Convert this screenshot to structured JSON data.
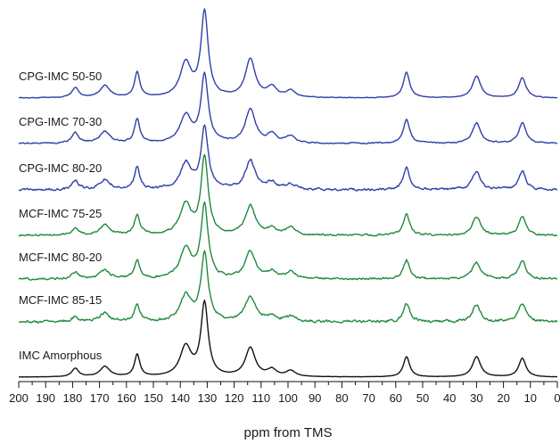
{
  "chart_data": {
    "type": "line",
    "title": "",
    "xlabel": "ppm from TMS",
    "ylabel": "",
    "xlim": [
      200,
      0
    ],
    "x_reversed": true,
    "xticks": [
      "200",
      "190",
      "180",
      "170",
      "160",
      "150",
      "140",
      "130",
      "120",
      "110",
      "100",
      "90",
      "80",
      "70",
      "60",
      "50",
      "40",
      "30",
      "20",
      "10",
      "0"
    ],
    "grid": false,
    "legend": "none",
    "series": [
      {
        "name": "CPG-IMC 50-50",
        "color": "#2f3fa6",
        "noise": 0.3,
        "peaks": [
          [
            179,
            0.12,
            1.5
          ],
          [
            168,
            0.14,
            2.2
          ],
          [
            156,
            0.3,
            1.2
          ],
          [
            138,
            0.4,
            2.5
          ],
          [
            131,
            1.0,
            1.6
          ],
          [
            114,
            0.45,
            2.2
          ],
          [
            106,
            0.12,
            2
          ],
          [
            99,
            0.08,
            2
          ],
          [
            56,
            0.3,
            1.4
          ],
          [
            30,
            0.26,
            1.8
          ],
          [
            13,
            0.24,
            1.6
          ]
        ]
      },
      {
        "name": "CPG-IMC 70-30",
        "color": "#2f3fa6",
        "noise": 0.55,
        "peaks": [
          [
            179,
            0.12,
            1.5
          ],
          [
            168,
            0.14,
            2.2
          ],
          [
            156,
            0.28,
            1.2
          ],
          [
            138,
            0.32,
            2.5
          ],
          [
            131,
            0.8,
            1.6
          ],
          [
            114,
            0.4,
            2.2
          ],
          [
            106,
            0.1,
            2
          ],
          [
            99,
            0.08,
            2
          ],
          [
            56,
            0.28,
            1.4
          ],
          [
            30,
            0.24,
            1.8
          ],
          [
            13,
            0.24,
            1.6
          ]
        ]
      },
      {
        "name": "CPG-IMC 80-20",
        "color": "#2f3fa6",
        "noise": 1.0,
        "peaks": [
          [
            179,
            0.1,
            1.5
          ],
          [
            168,
            0.12,
            2.2
          ],
          [
            156,
            0.26,
            1.2
          ],
          [
            138,
            0.3,
            2.5
          ],
          [
            131,
            0.72,
            1.6
          ],
          [
            114,
            0.34,
            2.2
          ],
          [
            106,
            0.08,
            2
          ],
          [
            99,
            0.06,
            2
          ],
          [
            56,
            0.26,
            1.4
          ],
          [
            30,
            0.22,
            1.8
          ],
          [
            13,
            0.22,
            1.6
          ]
        ]
      },
      {
        "name": "MCF-IMC 75-25",
        "color": "#1f8a3c",
        "noise": 0.8,
        "peaks": [
          [
            179,
            0.08,
            1.5
          ],
          [
            168,
            0.12,
            2.2
          ],
          [
            156,
            0.24,
            1.2
          ],
          [
            138,
            0.35,
            2.5
          ],
          [
            131,
            0.9,
            1.6
          ],
          [
            114,
            0.34,
            2.2
          ],
          [
            106,
            0.08,
            2
          ],
          [
            99,
            0.08,
            2
          ],
          [
            56,
            0.24,
            1.4
          ],
          [
            30,
            0.22,
            1.8
          ],
          [
            13,
            0.22,
            1.6
          ]
        ]
      },
      {
        "name": "MCF-IMC 80-20",
        "color": "#1f8a3c",
        "noise": 0.85,
        "peaks": [
          [
            179,
            0.08,
            1.5
          ],
          [
            168,
            0.1,
            2.2
          ],
          [
            156,
            0.22,
            1.2
          ],
          [
            138,
            0.35,
            2.5
          ],
          [
            131,
            0.86,
            1.6
          ],
          [
            114,
            0.32,
            2.2
          ],
          [
            106,
            0.08,
            2
          ],
          [
            99,
            0.08,
            2
          ],
          [
            56,
            0.22,
            1.4
          ],
          [
            30,
            0.2,
            1.8
          ],
          [
            13,
            0.22,
            1.6
          ]
        ]
      },
      {
        "name": "MCF-IMC 85-15",
        "color": "#1f8a3c",
        "noise": 1.1,
        "peaks": [
          [
            179,
            0.06,
            1.5
          ],
          [
            168,
            0.1,
            2.2
          ],
          [
            156,
            0.2,
            1.2
          ],
          [
            138,
            0.3,
            2.5
          ],
          [
            131,
            0.8,
            1.6
          ],
          [
            114,
            0.3,
            2.2
          ],
          [
            106,
            0.06,
            2
          ],
          [
            99,
            0.06,
            2
          ],
          [
            56,
            0.22,
            1.4
          ],
          [
            30,
            0.2,
            1.8
          ],
          [
            13,
            0.22,
            1.6
          ]
        ]
      },
      {
        "name": "IMC Amorphous",
        "color": "#111111",
        "noise": 0.1,
        "peaks": [
          [
            179,
            0.1,
            1.5
          ],
          [
            168,
            0.12,
            2.2
          ],
          [
            156,
            0.26,
            1.2
          ],
          [
            138,
            0.35,
            2.5
          ],
          [
            131,
            0.86,
            1.6
          ],
          [
            114,
            0.34,
            2.2
          ],
          [
            106,
            0.08,
            2
          ],
          [
            99,
            0.07,
            2
          ],
          [
            56,
            0.24,
            1.4
          ],
          [
            30,
            0.24,
            1.8
          ],
          [
            13,
            0.22,
            1.6
          ]
        ]
      }
    ]
  }
}
